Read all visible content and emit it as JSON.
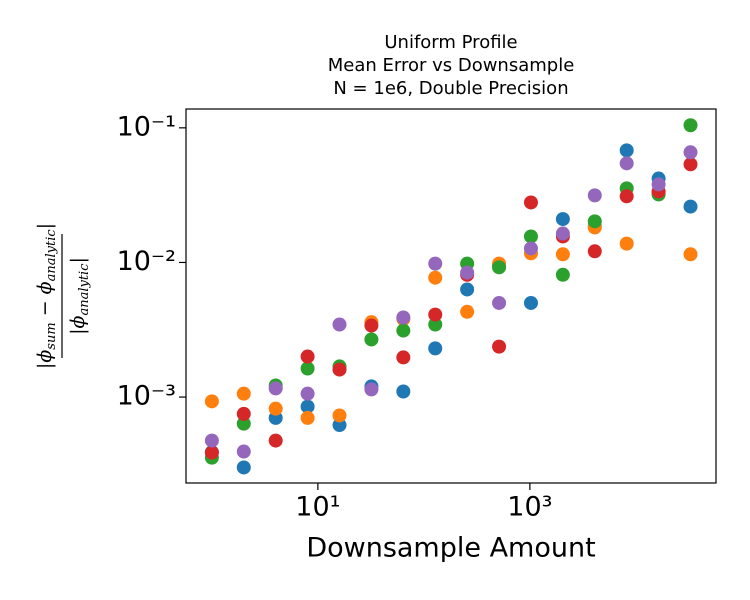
{
  "chart_data": {
    "type": "scatter",
    "title": [
      "Uniform Profile",
      "Mean Error vs Downsample",
      "N = 1e6, Double Precision"
    ],
    "xlabel": "Downsample Amount",
    "ylabel": {
      "numerator": [
        {
          "text": "|ϕ"
        },
        {
          "sub": "sum"
        },
        {
          "text": " − ϕ"
        },
        {
          "sub": "analytic"
        },
        {
          "text": "|"
        }
      ],
      "denominator": [
        {
          "text": "|ϕ"
        },
        {
          "sub": "analytic"
        },
        {
          "text": "|"
        }
      ]
    },
    "xscale": "log",
    "yscale": "log",
    "x": [
      1,
      2,
      4,
      8,
      16,
      32,
      64,
      128,
      256,
      512,
      1024,
      2048,
      4096,
      8192,
      16384,
      32768
    ],
    "series": [
      {
        "color": "#1f77b4",
        "values": [
          0.00039,
          0.0003,
          0.0007,
          0.00085,
          0.00062,
          0.0012,
          0.0011,
          0.0023,
          0.0063,
          0.0095,
          0.005,
          0.021,
          0.0185,
          0.068,
          0.042,
          0.026
        ]
      },
      {
        "color": "#ff7f0e",
        "values": [
          0.00093,
          0.00106,
          0.00082,
          0.0007,
          0.00073,
          0.0036,
          0.0038,
          0.0077,
          0.0043,
          0.0098,
          0.0117,
          0.0115,
          0.0182,
          0.0138,
          0.033,
          0.0115
        ]
      },
      {
        "color": "#2ca02c",
        "values": [
          0.000355,
          0.000635,
          0.00122,
          0.00163,
          0.00169,
          0.00268,
          0.00312,
          0.00346,
          0.0098,
          0.0092,
          0.0156,
          0.0081,
          0.0202,
          0.0355,
          0.032,
          0.1045
        ]
      },
      {
        "color": "#d62728",
        "values": [
          0.000387,
          0.00075,
          0.000475,
          0.002,
          0.0016,
          0.0034,
          0.00197,
          0.0041,
          0.0081,
          0.00237,
          0.0279,
          0.0156,
          0.0121,
          0.031,
          0.0337,
          0.0536
        ]
      },
      {
        "color": "#9467bd",
        "values": [
          0.000475,
          0.000394,
          0.00116,
          0.00106,
          0.00346,
          0.00114,
          0.0039,
          0.0098,
          0.0084,
          0.005,
          0.0127,
          0.0164,
          0.0315,
          0.0545,
          0.038,
          0.0658
        ]
      }
    ],
    "xlim": [
      0.57,
      57000
    ],
    "ylim": [
      0.00023,
      0.138
    ],
    "xticks": [
      {
        "value": 10,
        "label": "10¹"
      },
      {
        "value": 1000,
        "label": "10³"
      }
    ],
    "yticks": [
      {
        "value": 0.001,
        "label": "10⁻³"
      },
      {
        "value": 0.01,
        "label": "10⁻²"
      },
      {
        "value": 0.1,
        "label": "10⁻¹"
      }
    ]
  }
}
